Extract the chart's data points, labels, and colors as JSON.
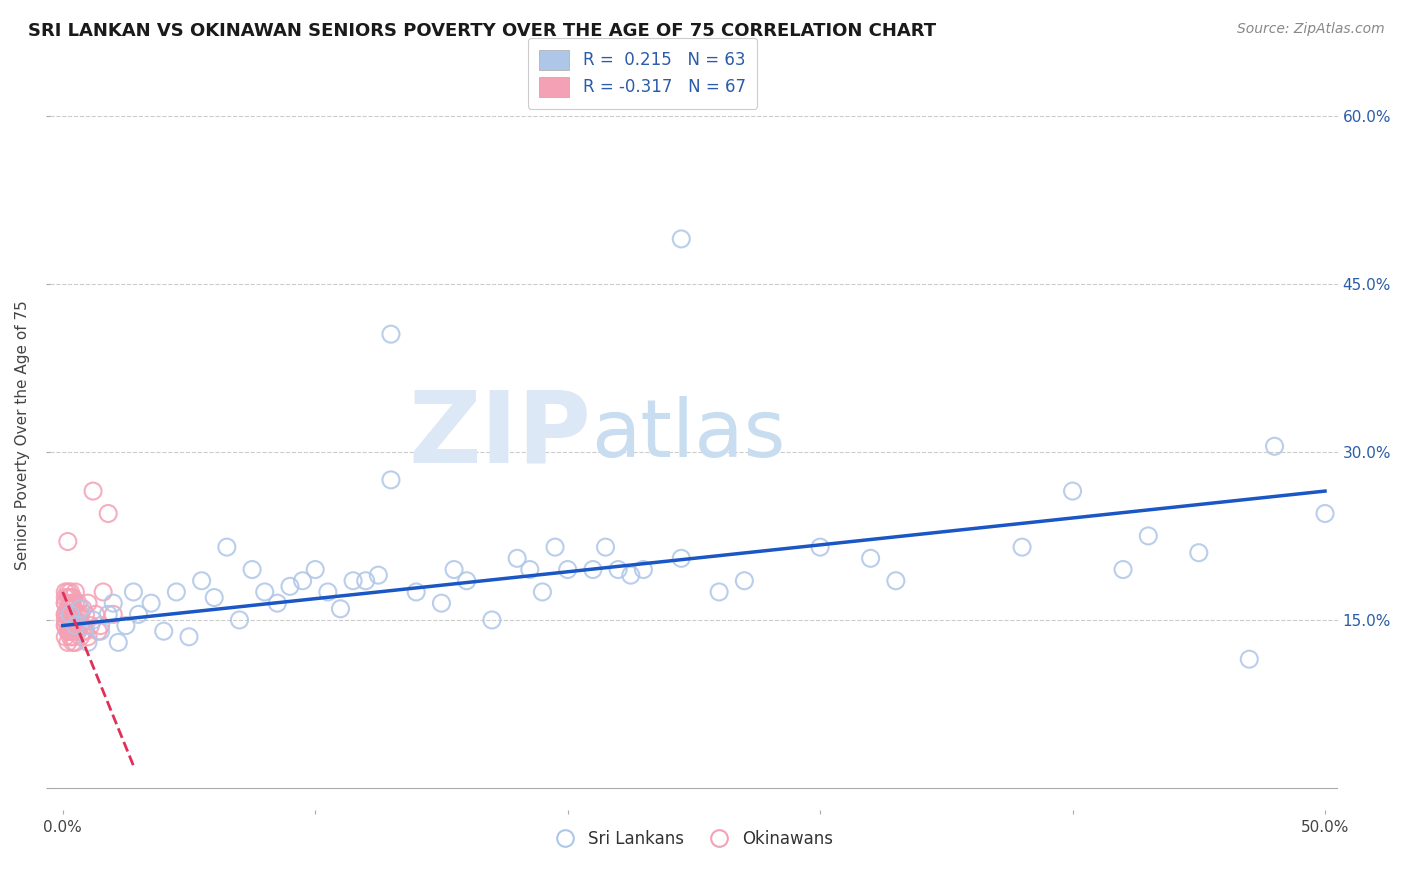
{
  "title": "SRI LANKAN VS OKINAWAN SENIORS POVERTY OVER THE AGE OF 75 CORRELATION CHART",
  "source": "Source: ZipAtlas.com",
  "ylabel": "Seniors Poverty Over the Age of 75",
  "xlim": [
    -0.005,
    0.505
  ],
  "ylim": [
    -0.02,
    0.65
  ],
  "yticks": [
    0.0,
    0.15,
    0.3,
    0.45,
    0.6
  ],
  "ytick_labels": [
    "",
    "15.0%",
    "30.0%",
    "45.0%",
    "60.0%"
  ],
  "xticks": [
    0.0,
    0.1,
    0.2,
    0.3,
    0.4,
    0.5
  ],
  "xtick_labels": [
    "0.0%",
    "",
    "",
    "",
    "",
    "50.0%"
  ],
  "grid_color": "#cccccc",
  "background_color": "#ffffff",
  "sri_lankan_color": "#aec6e8",
  "okinawan_color": "#f4a0b5",
  "sri_lankan_line_color": "#1a56c4",
  "okinawan_line_color": "#e0305a",
  "sri_lankan_R": 0.215,
  "sri_lankan_N": 63,
  "okinawan_R": -0.317,
  "okinawan_N": 67,
  "sl_trend_x0": 0.0,
  "sl_trend_y0": 0.145,
  "sl_trend_x1": 0.5,
  "sl_trend_y1": 0.265,
  "ok_trend_x0": 0.0,
  "ok_trend_y0": 0.175,
  "ok_trend_x1": 0.028,
  "ok_trend_y1": 0.02,
  "sri_lankans_x": [
    0.003,
    0.005,
    0.007,
    0.01,
    0.012,
    0.015,
    0.018,
    0.02,
    0.022,
    0.025,
    0.028,
    0.03,
    0.035,
    0.04,
    0.045,
    0.05,
    0.055,
    0.06,
    0.065,
    0.07,
    0.075,
    0.08,
    0.085,
    0.09,
    0.095,
    0.1,
    0.105,
    0.11,
    0.115,
    0.12,
    0.125,
    0.13,
    0.14,
    0.15,
    0.155,
    0.16,
    0.17,
    0.18,
    0.185,
    0.19,
    0.195,
    0.2,
    0.21,
    0.215,
    0.22,
    0.225,
    0.23,
    0.245,
    0.26,
    0.27,
    0.3,
    0.32,
    0.33,
    0.38,
    0.4,
    0.42,
    0.43,
    0.45,
    0.47,
    0.48,
    0.245,
    0.13,
    0.5
  ],
  "sri_lankans_y": [
    0.155,
    0.145,
    0.16,
    0.13,
    0.15,
    0.14,
    0.155,
    0.165,
    0.13,
    0.145,
    0.175,
    0.155,
    0.165,
    0.14,
    0.175,
    0.135,
    0.185,
    0.17,
    0.215,
    0.15,
    0.195,
    0.175,
    0.165,
    0.18,
    0.185,
    0.195,
    0.175,
    0.16,
    0.185,
    0.185,
    0.19,
    0.275,
    0.175,
    0.165,
    0.195,
    0.185,
    0.15,
    0.205,
    0.195,
    0.175,
    0.215,
    0.195,
    0.195,
    0.215,
    0.195,
    0.19,
    0.195,
    0.205,
    0.175,
    0.185,
    0.215,
    0.205,
    0.185,
    0.215,
    0.265,
    0.195,
    0.225,
    0.21,
    0.115,
    0.305,
    0.49,
    0.405,
    0.245
  ],
  "okinawans_x": [
    0.001,
    0.001,
    0.001,
    0.001,
    0.001,
    0.001,
    0.001,
    0.001,
    0.001,
    0.001,
    0.002,
    0.002,
    0.002,
    0.002,
    0.002,
    0.002,
    0.002,
    0.002,
    0.002,
    0.002,
    0.003,
    0.003,
    0.003,
    0.003,
    0.003,
    0.003,
    0.003,
    0.003,
    0.003,
    0.003,
    0.004,
    0.004,
    0.004,
    0.004,
    0.004,
    0.004,
    0.004,
    0.004,
    0.004,
    0.004,
    0.005,
    0.005,
    0.005,
    0.005,
    0.005,
    0.005,
    0.005,
    0.006,
    0.006,
    0.006,
    0.007,
    0.007,
    0.007,
    0.008,
    0.008,
    0.009,
    0.009,
    0.01,
    0.01,
    0.011,
    0.012,
    0.013,
    0.014,
    0.015,
    0.016,
    0.018,
    0.02
  ],
  "okinawans_y": [
    0.155,
    0.145,
    0.165,
    0.175,
    0.135,
    0.15,
    0.17,
    0.155,
    0.145,
    0.165,
    0.14,
    0.155,
    0.16,
    0.13,
    0.175,
    0.145,
    0.155,
    0.17,
    0.14,
    0.22,
    0.155,
    0.14,
    0.165,
    0.15,
    0.175,
    0.135,
    0.145,
    0.17,
    0.155,
    0.14,
    0.15,
    0.165,
    0.14,
    0.155,
    0.16,
    0.13,
    0.145,
    0.155,
    0.135,
    0.17,
    0.14,
    0.155,
    0.165,
    0.13,
    0.15,
    0.175,
    0.145,
    0.14,
    0.155,
    0.165,
    0.155,
    0.145,
    0.135,
    0.14,
    0.16,
    0.155,
    0.14,
    0.165,
    0.135,
    0.145,
    0.265,
    0.155,
    0.14,
    0.145,
    0.175,
    0.245,
    0.155
  ]
}
